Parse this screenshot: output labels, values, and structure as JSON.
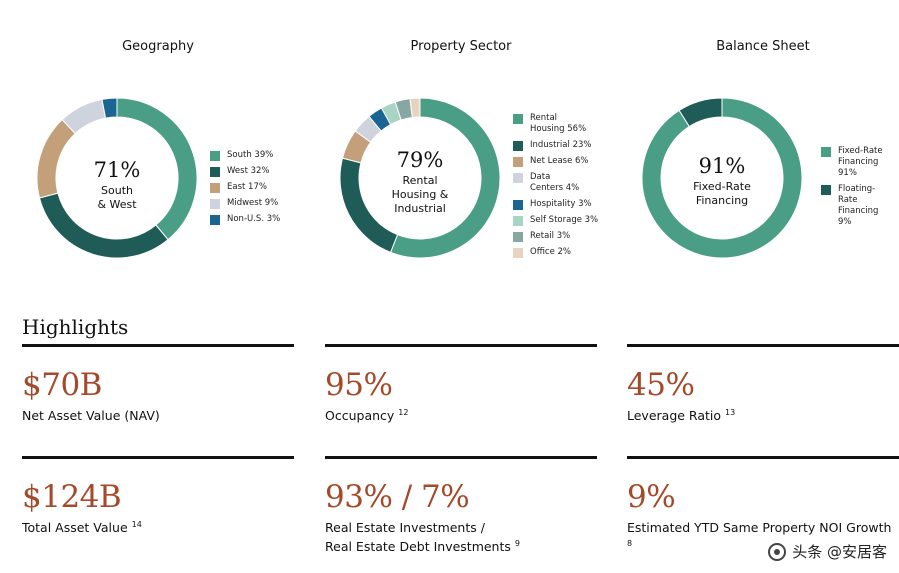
{
  "chart_data": [
    {
      "type": "pie",
      "title": "Geography",
      "center_value": "71%",
      "center_label": "South\n& West",
      "slices": [
        {
          "label": "South 39%",
          "value": 39,
          "color": "#4a9e86"
        },
        {
          "label": "West 32%",
          "value": 32,
          "color": "#1f5c57"
        },
        {
          "label": "East 17%",
          "value": 17,
          "color": "#c4a07a"
        },
        {
          "label": "Midwest 9%",
          "value": 9,
          "color": "#cfd3de"
        },
        {
          "label": "Non-U.S. 3%",
          "value": 3,
          "color": "#1a6591"
        }
      ]
    },
    {
      "type": "pie",
      "title": "Property Sector",
      "center_value": "79%",
      "center_label": "Rental\nHousing &\nIndustrial",
      "slices": [
        {
          "label": "Rental\nHousing 56%",
          "value": 56,
          "color": "#4a9e86"
        },
        {
          "label": "Industrial 23%",
          "value": 23,
          "color": "#1f5c57"
        },
        {
          "label": "Net Lease 6%",
          "value": 6,
          "color": "#c4a07a"
        },
        {
          "label": "Data\nCenters 4%",
          "value": 4,
          "color": "#cfd3de"
        },
        {
          "label": "Hospitality 3%",
          "value": 3,
          "color": "#1a6591"
        },
        {
          "label": "Self Storage 3%",
          "value": 3,
          "color": "#a9d4c4"
        },
        {
          "label": "Retail 3%",
          "value": 3,
          "color": "#88a7a3"
        },
        {
          "label": "Office 2%",
          "value": 2,
          "color": "#e8d3c1"
        }
      ]
    },
    {
      "type": "pie",
      "title": "Balance Sheet",
      "center_value": "91%",
      "center_label": "Fixed-Rate\nFinancing",
      "slices": [
        {
          "label": "Fixed-Rate\nFinancing\n91%",
          "value": 91,
          "color": "#4a9e86"
        },
        {
          "label": "Floating-\nRate\nFinancing\n9%",
          "value": 9,
          "color": "#1f5c57"
        }
      ]
    }
  ],
  "highlights": {
    "title": "Highlights",
    "items": [
      {
        "value": "$70B",
        "label": "Net Asset Value (NAV)",
        "note": ""
      },
      {
        "value": "95%",
        "label": "Occupancy",
        "note": "12"
      },
      {
        "value": "45%",
        "label": "Leverage Ratio",
        "note": "13"
      },
      {
        "value": "$124B",
        "label": "Total Asset Value",
        "note": "14"
      },
      {
        "value": "93% / 7%",
        "label": "Real Estate Investments /",
        "label2": "Real Estate Debt Investments",
        "note": "9"
      },
      {
        "value": "9%",
        "label": "Estimated YTD Same Property NOI Growth",
        "note": "8"
      }
    ]
  },
  "watermark": "头条 @安居客"
}
